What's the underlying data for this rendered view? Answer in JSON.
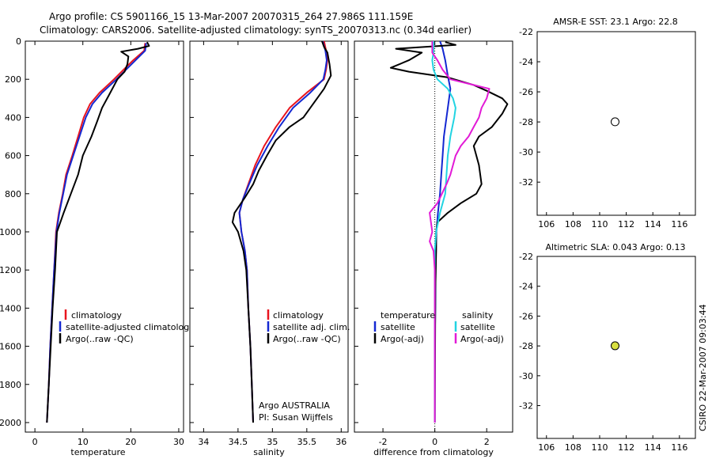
{
  "header": {
    "line1": "Argo profile: CS 5901166_15 13-Mar-2007 20070315_264 27.986S 111.159E",
    "line2": "Climatology: CARS2006. Satellite-adjusted climatology: synTS_20070313.nc (0.34d earlier)"
  },
  "side_label": "CSIRO 22-Mar-2007 09:03:44",
  "colors": {
    "climatology": "#e8141e",
    "satellite": "#1428d2",
    "argo": "#000000",
    "sal_satellite": "#22d4e2",
    "sal_argo": "#e21ad6"
  },
  "chart_data": [
    {
      "type": "line",
      "id": "temperature",
      "xlabel": "temperature",
      "ylabel": "",
      "xlim": [
        -2,
        31
      ],
      "ylim": [
        2050,
        0
      ],
      "y_inverted": true,
      "xticks": [
        0,
        10,
        20,
        30
      ],
      "yticks": [
        0,
        200,
        400,
        600,
        800,
        1000,
        1200,
        1400,
        1600,
        1800,
        2000
      ],
      "legend": [
        "climatology",
        "satellite-adjusted climatology",
        "Argo(..raw -QC)"
      ],
      "series": [
        {
          "name": "climatology",
          "color": "#e8141e",
          "points": [
            [
              23.0,
              10
            ],
            [
              22.8,
              50
            ],
            [
              20.5,
              100
            ],
            [
              18.5,
              150
            ],
            [
              16.5,
              200
            ],
            [
              13.5,
              270
            ],
            [
              11.5,
              330
            ],
            [
              10.2,
              400
            ],
            [
              9.0,
              500
            ],
            [
              7.8,
              600
            ],
            [
              6.5,
              700
            ],
            [
              5.8,
              800
            ],
            [
              5.0,
              900
            ],
            [
              4.4,
              1000
            ],
            [
              4.0,
              1200
            ],
            [
              3.6,
              1400
            ],
            [
              3.2,
              1600
            ],
            [
              2.9,
              1800
            ],
            [
              2.5,
              2000
            ]
          ]
        },
        {
          "name": "satellite-adjusted climatology",
          "color": "#1428d2",
          "points": [
            [
              23.2,
              10
            ],
            [
              23.0,
              50
            ],
            [
              21.0,
              100
            ],
            [
              19.0,
              150
            ],
            [
              17.0,
              200
            ],
            [
              14.0,
              270
            ],
            [
              12.0,
              330
            ],
            [
              10.6,
              400
            ],
            [
              9.3,
              500
            ],
            [
              8.0,
              600
            ],
            [
              6.7,
              700
            ],
            [
              5.9,
              800
            ],
            [
              5.1,
              900
            ],
            [
              4.5,
              1000
            ],
            [
              4.0,
              1200
            ],
            [
              3.6,
              1400
            ],
            [
              3.2,
              1600
            ],
            [
              2.9,
              1800
            ],
            [
              2.5,
              2000
            ]
          ]
        },
        {
          "name": "Argo(..raw -QC)",
          "color": "#000000",
          "points": [
            [
              23.4,
              5
            ],
            [
              23.8,
              25
            ],
            [
              21.5,
              40
            ],
            [
              18.0,
              55
            ],
            [
              19.5,
              80
            ],
            [
              19.3,
              120
            ],
            [
              18.7,
              160
            ],
            [
              17.2,
              200
            ],
            [
              15.5,
              280
            ],
            [
              14.0,
              350
            ],
            [
              13.0,
              420
            ],
            [
              11.8,
              500
            ],
            [
              10.0,
              600
            ],
            [
              9.0,
              700
            ],
            [
              7.5,
              800
            ],
            [
              6.0,
              900
            ],
            [
              4.6,
              1000
            ],
            [
              4.2,
              1200
            ],
            [
              3.7,
              1400
            ],
            [
              3.3,
              1600
            ],
            [
              2.9,
              1800
            ],
            [
              2.5,
              2000
            ]
          ]
        }
      ]
    },
    {
      "type": "line",
      "id": "salinity",
      "xlabel": "salinity",
      "ylabel": "",
      "xlim": [
        33.8,
        36.1
      ],
      "ylim": [
        2050,
        0
      ],
      "y_inverted": true,
      "xticks": [
        34,
        34.5,
        35,
        35.5,
        36
      ],
      "legend": [
        "climatology",
        "satellite adj. clim.",
        "Argo(..raw -QC)"
      ],
      "annotation": [
        "Argo AUSTRALIA",
        "PI: Susan Wijffels"
      ],
      "series": [
        {
          "name": "climatology",
          "color": "#e8141e",
          "points": [
            [
              35.75,
              0
            ],
            [
              35.78,
              50
            ],
            [
              35.8,
              100
            ],
            [
              35.78,
              150
            ],
            [
              35.75,
              200
            ],
            [
              35.5,
              270
            ],
            [
              35.25,
              350
            ],
            [
              35.05,
              450
            ],
            [
              34.88,
              550
            ],
            [
              34.75,
              650
            ],
            [
              34.65,
              750
            ],
            [
              34.57,
              830
            ],
            [
              34.52,
              900
            ],
            [
              34.55,
              1000
            ],
            [
              34.6,
              1100
            ],
            [
              34.63,
              1200
            ],
            [
              34.65,
              1400
            ],
            [
              34.68,
              1600
            ],
            [
              34.7,
              1800
            ],
            [
              34.72,
              2000
            ]
          ]
        },
        {
          "name": "satellite adj. clim.",
          "color": "#1428d2",
          "points": [
            [
              35.73,
              0
            ],
            [
              35.77,
              50
            ],
            [
              35.79,
              100
            ],
            [
              35.77,
              150
            ],
            [
              35.74,
              200
            ],
            [
              35.55,
              270
            ],
            [
              35.3,
              350
            ],
            [
              35.1,
              450
            ],
            [
              34.93,
              550
            ],
            [
              34.78,
              650
            ],
            [
              34.66,
              750
            ],
            [
              34.57,
              830
            ],
            [
              34.52,
              900
            ],
            [
              34.55,
              1000
            ],
            [
              34.6,
              1100
            ],
            [
              34.63,
              1200
            ],
            [
              34.65,
              1400
            ],
            [
              34.68,
              1600
            ],
            [
              34.7,
              1800
            ],
            [
              34.72,
              2000
            ]
          ]
        },
        {
          "name": "Argo(..raw -QC)",
          "color": "#000000",
          "points": [
            [
              35.72,
              0
            ],
            [
              35.75,
              30
            ],
            [
              35.8,
              60
            ],
            [
              35.83,
              120
            ],
            [
              35.85,
              180
            ],
            [
              35.75,
              250
            ],
            [
              35.55,
              350
            ],
            [
              35.45,
              400
            ],
            [
              35.25,
              450
            ],
            [
              35.05,
              520
            ],
            [
              34.92,
              600
            ],
            [
              34.8,
              680
            ],
            [
              34.72,
              750
            ],
            [
              34.6,
              820
            ],
            [
              34.45,
              900
            ],
            [
              34.42,
              950
            ],
            [
              34.5,
              1000
            ],
            [
              34.58,
              1100
            ],
            [
              34.62,
              1200
            ],
            [
              34.65,
              1400
            ],
            [
              34.68,
              1600
            ],
            [
              34.7,
              1800
            ],
            [
              34.72,
              2000
            ]
          ]
        }
      ]
    },
    {
      "type": "line",
      "id": "difference",
      "xlabel": "difference from climatology",
      "ylabel": "",
      "xlim": [
        -3.1,
        3.0
      ],
      "ylim": [
        2050,
        0
      ],
      "y_inverted": true,
      "xticks": [
        -2,
        0,
        2
      ],
      "legend_titles": [
        "temperature",
        "salinity"
      ],
      "legend": [
        "satellite",
        "Argo(-adj)",
        "satellite",
        "Argo(-adj)"
      ],
      "series": [
        {
          "name": "temperature satellite",
          "color": "#1428d2",
          "points": [
            [
              0.2,
              0
            ],
            [
              0.3,
              40
            ],
            [
              0.4,
              100
            ],
            [
              0.5,
              180
            ],
            [
              0.6,
              250
            ],
            [
              0.55,
              300
            ],
            [
              0.45,
              400
            ],
            [
              0.35,
              500
            ],
            [
              0.3,
              600
            ],
            [
              0.25,
              700
            ],
            [
              0.2,
              800
            ],
            [
              0.12,
              900
            ],
            [
              0.06,
              1000
            ],
            [
              0.03,
              1200
            ],
            [
              0.02,
              1400
            ],
            [
              0.0,
              1600
            ],
            [
              0.0,
              2000
            ]
          ]
        },
        {
          "name": "temperature Argo(-adj)",
          "color": "#000000",
          "points": [
            [
              0.4,
              5
            ],
            [
              0.8,
              20
            ],
            [
              -1.5,
              40
            ],
            [
              -0.5,
              60
            ],
            [
              -1.0,
              100
            ],
            [
              -1.7,
              140
            ],
            [
              -1.0,
              160
            ],
            [
              0.5,
              190
            ],
            [
              1.5,
              230
            ],
            [
              2.0,
              260
            ],
            [
              2.6,
              300
            ],
            [
              2.8,
              330
            ],
            [
              2.6,
              380
            ],
            [
              2.2,
              450
            ],
            [
              1.7,
              500
            ],
            [
              1.5,
              550
            ],
            [
              1.7,
              650
            ],
            [
              1.8,
              750
            ],
            [
              1.6,
              800
            ],
            [
              1.0,
              850
            ],
            [
              0.5,
              900
            ],
            [
              0.1,
              950
            ],
            [
              0.05,
              1000
            ],
            [
              0.05,
              1100
            ],
            [
              0.02,
              1300
            ],
            [
              0.0,
              2000
            ]
          ]
        },
        {
          "name": "salinity satellite",
          "color": "#22d4e2",
          "points": [
            [
              -0.05,
              0
            ],
            [
              -0.05,
              60
            ],
            [
              -0.1,
              100
            ],
            [
              -0.05,
              150
            ],
            [
              0.1,
              200
            ],
            [
              0.5,
              250
            ],
            [
              0.7,
              300
            ],
            [
              0.8,
              350
            ],
            [
              0.75,
              400
            ],
            [
              0.6,
              500
            ],
            [
              0.5,
              600
            ],
            [
              0.45,
              700
            ],
            [
              0.4,
              800
            ],
            [
              0.2,
              900
            ],
            [
              0.05,
              1000
            ],
            [
              0.0,
              1100
            ],
            [
              0.0,
              2000
            ]
          ]
        },
        {
          "name": "salinity Argo(-adj)",
          "color": "#e21ad6",
          "points": [
            [
              -0.1,
              0
            ],
            [
              -0.1,
              60
            ],
            [
              0.1,
              100
            ],
            [
              0.3,
              150
            ],
            [
              0.6,
              200
            ],
            [
              1.5,
              230
            ],
            [
              2.1,
              250
            ],
            [
              2.0,
              300
            ],
            [
              1.8,
              350
            ],
            [
              1.7,
              400
            ],
            [
              1.5,
              450
            ],
            [
              1.3,
              500
            ],
            [
              1.0,
              550
            ],
            [
              0.8,
              600
            ],
            [
              0.6,
              700
            ],
            [
              0.45,
              750
            ],
            [
              0.1,
              850
            ],
            [
              -0.2,
              900
            ],
            [
              -0.1,
              1000
            ],
            [
              -0.2,
              1050
            ],
            [
              -0.05,
              1100
            ],
            [
              0.0,
              1200
            ],
            [
              0.0,
              2000
            ]
          ]
        }
      ]
    },
    {
      "type": "heatmap",
      "id": "sst_map",
      "title": "AMSR-E SST: 23.1 Argo: 22.8",
      "xlim": [
        105.3,
        117.2
      ],
      "ylim": [
        -34.2,
        -22
      ],
      "xticks": [
        106,
        108,
        110,
        112,
        114,
        116
      ],
      "yticks": [
        -22,
        -24,
        -26,
        -28,
        -30,
        -32
      ],
      "marker": {
        "lon": 111.16,
        "lat": -27.99
      }
    },
    {
      "type": "heatmap",
      "id": "sla_map",
      "title": "Altimetric SLA: 0.043 Argo: 0.13",
      "xlim": [
        105.3,
        117.2
      ],
      "ylim": [
        -34.2,
        -22
      ],
      "xticks": [
        106,
        108,
        110,
        112,
        114,
        116
      ],
      "yticks": [
        -22,
        -24,
        -26,
        -28,
        -30,
        -32
      ],
      "marker": {
        "lon": 111.16,
        "lat": -27.99
      }
    }
  ]
}
